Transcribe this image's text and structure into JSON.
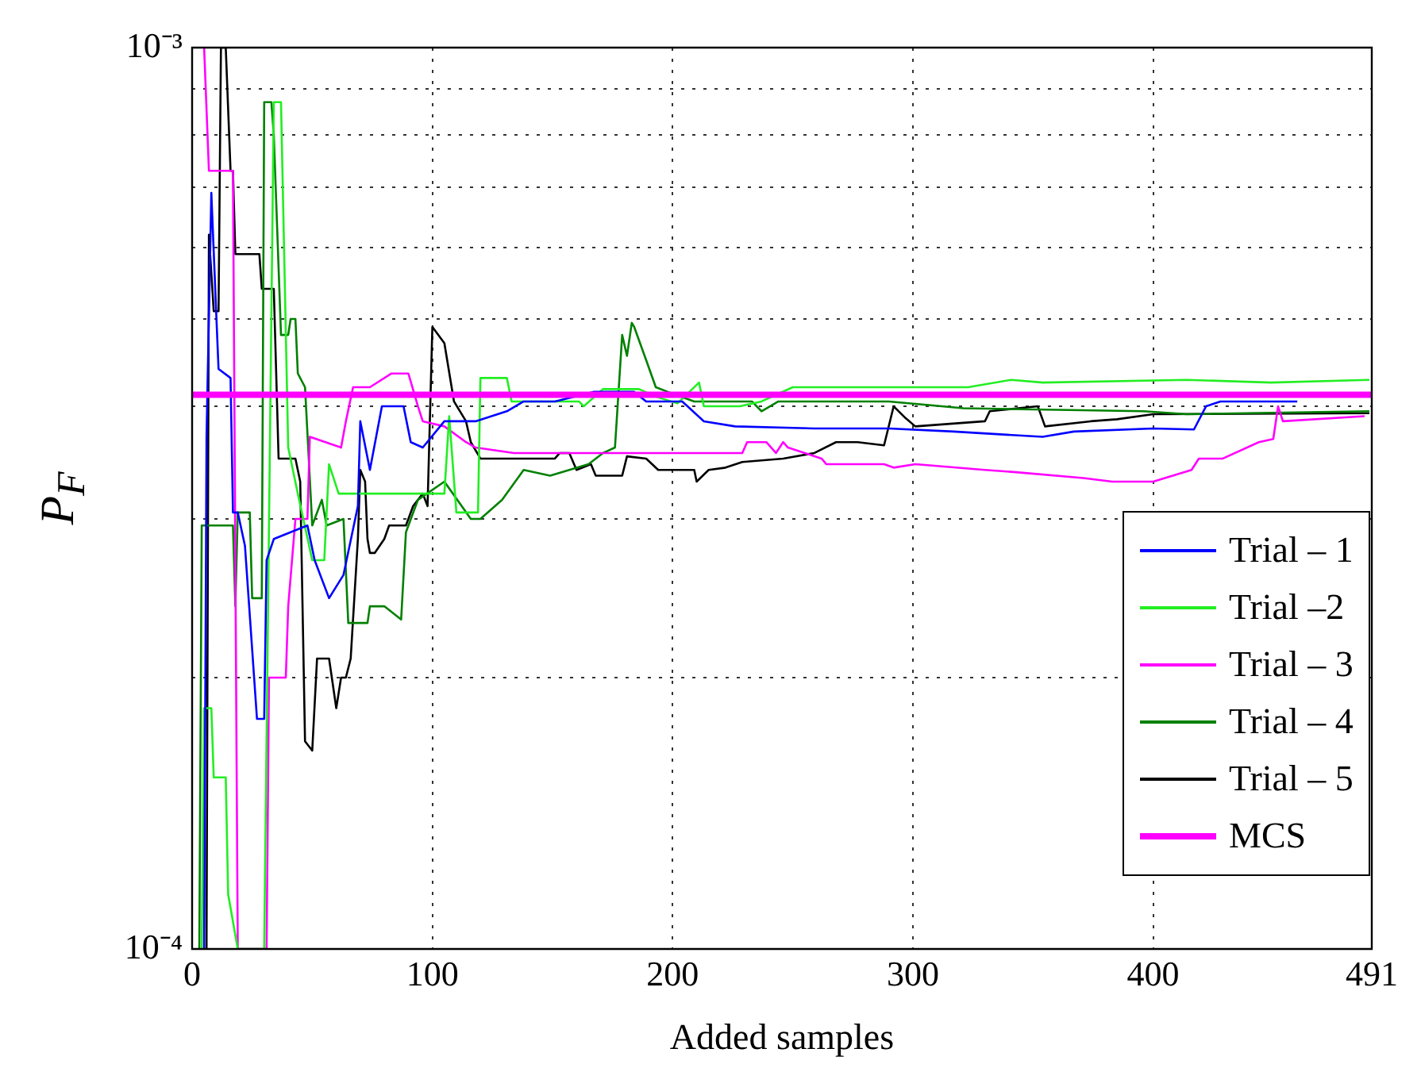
{
  "chart_data": {
    "type": "line",
    "xlabel": "Added samples",
    "ylabel": "P$_{F}$",
    "log": "y",
    "grid": true,
    "legend": "bottom right",
    "xlim": [
      0,
      491
    ],
    "xticks": [
      0,
      100,
      200,
      300,
      400,
      491
    ],
    "ylim": [
      0.0001,
      0.001
    ],
    "yticks": [
      {
        "value": 0.0001,
        "label": "10⁻⁴"
      },
      {
        "value": 0.0002,
        "label": null
      },
      {
        "value": 0.0003,
        "label": null
      },
      {
        "value": 0.0004,
        "label": null
      },
      {
        "value": 0.0005,
        "label": null
      },
      {
        "value": 0.0006,
        "label": null
      },
      {
        "value": 0.0007,
        "label": null
      },
      {
        "value": 0.0008,
        "label": null
      },
      {
        "value": 0.0009,
        "label": null
      },
      {
        "value": 0.001,
        "label": "10⁻³"
      }
    ],
    "series": [
      {
        "name": "Trial – 1",
        "color": "#0000ff",
        "x": [
          5,
          6,
          8,
          10,
          11,
          16,
          17,
          19,
          22,
          27,
          30,
          31,
          34,
          48,
          51,
          57,
          63,
          69,
          70,
          74,
          79,
          88,
          91,
          96,
          105,
          118,
          131,
          138,
          151,
          167,
          184,
          189,
          204,
          213,
          226,
          259,
          290,
          317,
          354,
          367,
          400,
          417,
          422,
          428,
          460
        ],
        "values": [
          0.0001,
          0.00037,
          0.00069,
          0.00051,
          0.00044,
          0.00043,
          0.000305,
          0.000305,
          0.00028,
          0.00018,
          0.00018,
          0.00027,
          0.000285,
          0.000295,
          0.00027,
          0.000245,
          0.00026,
          0.00031,
          0.000385,
          0.00034,
          0.0004,
          0.0004,
          0.000365,
          0.00036,
          0.000385,
          0.000385,
          0.000395,
          0.000405,
          0.000405,
          0.000415,
          0.000415,
          0.000405,
          0.000405,
          0.000385,
          0.00038,
          0.000378,
          0.000378,
          0.000375,
          0.00037,
          0.000375,
          0.000378,
          0.000377,
          0.0004,
          0.000405,
          0.000405
        ]
      },
      {
        "name": "Trial –2",
        "color": "#22ee22",
        "x": [
          4,
          5,
          8,
          9,
          14,
          15,
          19,
          30,
          34,
          37,
          40,
          44,
          50,
          55,
          57,
          61,
          96,
          105,
          107,
          110,
          119,
          120,
          131,
          133,
          161,
          163,
          171,
          186,
          193,
          202,
          211,
          213,
          228,
          237,
          250,
          268,
          281,
          297,
          323,
          341,
          354,
          414,
          449,
          490
        ],
        "values": [
          0.0001,
          0.000185,
          0.000185,
          0.000155,
          0.000155,
          0.000115,
          0.0001,
          0.0001,
          0.00087,
          0.00087,
          0.00036,
          0.00032,
          0.00027,
          0.00027,
          0.000345,
          0.00032,
          0.00032,
          0.00032,
          0.00039,
          0.000305,
          0.000305,
          0.00043,
          0.00043,
          0.000405,
          0.000405,
          0.0004,
          0.000418,
          0.000418,
          0.00041,
          0.000403,
          0.000425,
          0.0004,
          0.0004,
          0.000405,
          0.00042,
          0.00042,
          0.00042,
          0.00042,
          0.00042,
          0.000428,
          0.000425,
          0.000428,
          0.000425,
          0.000428
        ]
      },
      {
        "name": "Trial – 3",
        "color": "#ff00ff",
        "x": [
          5,
          7,
          17,
          19,
          31,
          32,
          39,
          40,
          43,
          48,
          49,
          62,
          64,
          67,
          74,
          83,
          90,
          94,
          96,
          105,
          114,
          118,
          134,
          229,
          231,
          239,
          243,
          246,
          248,
          262,
          264,
          288,
          292,
          301,
          330,
          343,
          371,
          383,
          400,
          416,
          419,
          429,
          444,
          450,
          452,
          454,
          488
        ],
        "values": [
          0.001,
          0.00073,
          0.00073,
          0.0001,
          0.0001,
          0.0002,
          0.0002,
          0.00024,
          0.0003,
          0.0003,
          0.00037,
          0.00036,
          0.000385,
          0.00042,
          0.00042,
          0.000435,
          0.000435,
          0.0004,
          0.000385,
          0.00038,
          0.000365,
          0.00036,
          0.000355,
          0.000355,
          0.000365,
          0.000365,
          0.000355,
          0.000365,
          0.00036,
          0.00035,
          0.000345,
          0.000345,
          0.000342,
          0.000345,
          0.00034,
          0.000338,
          0.000333,
          0.00033,
          0.00033,
          0.00034,
          0.00035,
          0.00035,
          0.000365,
          0.000368,
          0.0004,
          0.000385,
          0.00039
        ]
      },
      {
        "name": "Trial – 4",
        "color": "#008000",
        "x": [
          3,
          4,
          9,
          17,
          18,
          19,
          24,
          25,
          29,
          30,
          33,
          34,
          37,
          40,
          41,
          43,
          44,
          47,
          50,
          54,
          56,
          63,
          65,
          73,
          74,
          80,
          87,
          89,
          94,
          105,
          116,
          120,
          129,
          138,
          149,
          165,
          171,
          176,
          179,
          181,
          183,
          184,
          189,
          193,
          198,
          209,
          233,
          237,
          244,
          290,
          321,
          396,
          414,
          490
        ],
        "values": [
          0.0001,
          0.000295,
          0.000295,
          0.000295,
          0.00024,
          0.000305,
          0.000305,
          0.000245,
          0.000245,
          0.00087,
          0.00087,
          0.0008,
          0.00048,
          0.00048,
          0.0005,
          0.0005,
          0.000435,
          0.00042,
          0.000295,
          0.000315,
          0.000295,
          0.0003,
          0.00023,
          0.00023,
          0.00024,
          0.00024,
          0.000232,
          0.00029,
          0.000315,
          0.00033,
          0.0003,
          0.0003,
          0.000315,
          0.00034,
          0.000335,
          0.000345,
          0.000355,
          0.00036,
          0.00048,
          0.000455,
          0.000495,
          0.00049,
          0.00045,
          0.00042,
          0.000415,
          0.000405,
          0.000405,
          0.000395,
          0.000405,
          0.000405,
          0.000398,
          0.000395,
          0.000392,
          0.000395
        ]
      },
      {
        "name": "Trial – 5",
        "color": "#000000",
        "x": [
          6,
          7,
          9,
          11,
          12,
          14,
          16,
          17,
          18,
          28,
          29,
          34,
          36,
          43,
          45,
          47,
          50,
          52,
          57,
          60,
          62,
          64,
          66,
          69,
          70,
          72,
          73,
          74,
          76,
          80,
          82,
          89,
          92,
          96,
          98,
          100,
          105,
          109,
          114,
          116,
          120,
          151,
          153,
          157,
          160,
          166,
          168,
          179,
          181,
          189,
          194,
          209,
          210,
          215,
          222,
          229,
          246,
          259,
          268,
          277,
          288,
          292,
          297,
          301,
          330,
          332,
          352,
          355,
          374,
          385,
          400,
          490
        ],
        "values": [
          0.0001,
          0.00062,
          0.00051,
          0.00051,
          0.001,
          0.001,
          0.00073,
          0.00073,
          0.00059,
          0.00059,
          0.00054,
          0.00054,
          0.00035,
          0.00035,
          0.00033,
          0.00017,
          0.000166,
          0.00021,
          0.00021,
          0.000185,
          0.0002,
          0.0002,
          0.00021,
          0.000285,
          0.00034,
          0.00033,
          0.000285,
          0.000275,
          0.000275,
          0.000285,
          0.000295,
          0.000295,
          0.00031,
          0.00032,
          0.00031,
          0.00049,
          0.00047,
          0.000405,
          0.000385,
          0.000365,
          0.00035,
          0.00035,
          0.000355,
          0.000355,
          0.00034,
          0.000345,
          0.000335,
          0.000335,
          0.000352,
          0.00035,
          0.00034,
          0.00034,
          0.00033,
          0.00034,
          0.000342,
          0.000347,
          0.00035,
          0.000355,
          0.000365,
          0.000365,
          0.000362,
          0.0004,
          0.000388,
          0.00038,
          0.000385,
          0.000395,
          0.0004,
          0.00038,
          0.000385,
          0.000387,
          0.000392,
          0.000393
        ]
      }
    ],
    "ref_lines": [
      {
        "axis": "y",
        "value": 0.000412,
        "label": "MCS",
        "color": "#ff00ff"
      }
    ]
  }
}
